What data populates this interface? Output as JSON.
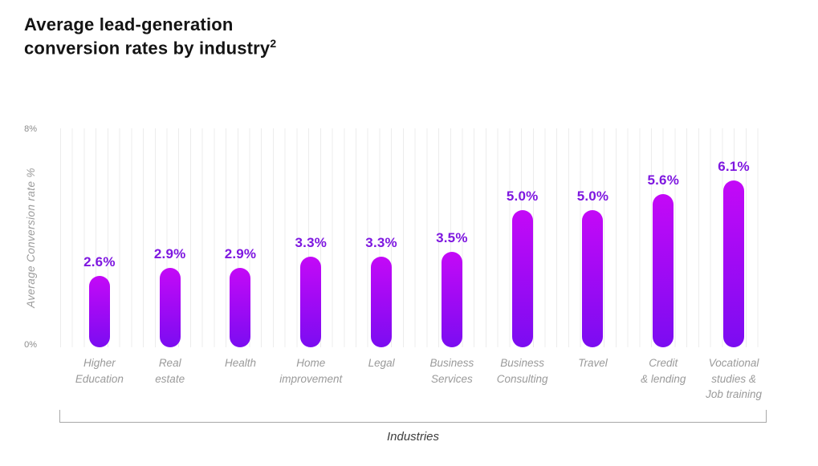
{
  "title": {
    "line1": "Average lead-generation",
    "line2": "conversion rates by industry",
    "superscript": "2"
  },
  "chart_data": {
    "type": "bar",
    "title": "Average lead-generation conversion rates by industry²",
    "categories": [
      "Higher\nEducation",
      "Real\nestate",
      "Health",
      "Home\nimprovement",
      "Legal",
      "Business\nServices",
      "Business\nConsulting",
      "Travel",
      "Credit\n& lending",
      "Vocational\nstudies &\nJob training"
    ],
    "values": [
      2.6,
      2.9,
      2.9,
      3.3,
      3.3,
      3.5,
      5.0,
      5.0,
      5.6,
      6.1
    ],
    "value_labels": [
      "2.6%",
      "2.9%",
      "2.9%",
      "3.3%",
      "3.3%",
      "3.5%",
      "5.0%",
      "5.0%",
      "5.6%",
      "6.1%"
    ],
    "xlabel": "Industries",
    "ylabel": "Average Conversion rate  %",
    "ylim": [
      0,
      8
    ],
    "yticks": [
      {
        "value": 8,
        "label": "8%"
      },
      {
        "value": 0,
        "label": "0%"
      }
    ],
    "grid": "vertical-only",
    "legend": "none",
    "bar_color_top": "#c409f7",
    "bar_color_bottom": "#7b0cf1",
    "value_label_color": "#7e17e0"
  }
}
